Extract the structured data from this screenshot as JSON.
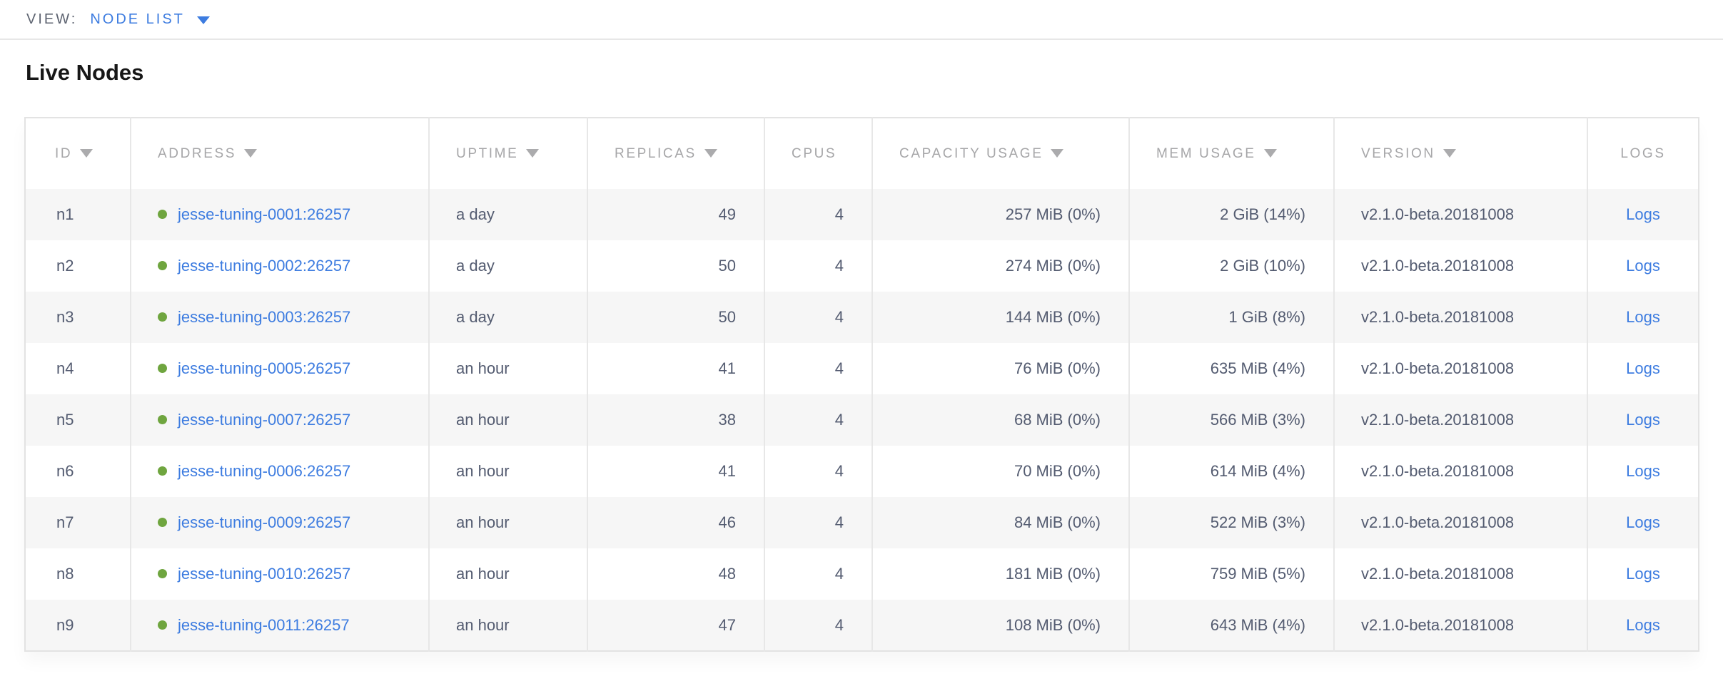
{
  "view_bar": {
    "label": "VIEW:",
    "selected_view": "NODE LIST"
  },
  "page": {
    "title": "Live Nodes"
  },
  "colors": {
    "link_blue": "#3d7ce0",
    "live_status_green": "#6fa53f",
    "header_grey": "#a6a6a8",
    "body_text_slate": "#535b70",
    "row_stripe": "#f6f6f6",
    "border": "#e7e7e7"
  },
  "table": {
    "columns": [
      {
        "label": "ID",
        "sortable": true
      },
      {
        "label": "ADDRESS",
        "sortable": true
      },
      {
        "label": "UPTIME",
        "sortable": true
      },
      {
        "label": "REPLICAS",
        "sortable": true
      },
      {
        "label": "CPUS",
        "sortable": false
      },
      {
        "label": "CAPACITY USAGE",
        "sortable": true
      },
      {
        "label": "MEM USAGE",
        "sortable": true
      },
      {
        "label": "VERSION",
        "sortable": true
      },
      {
        "label": "LOGS",
        "sortable": false
      }
    ],
    "rows": [
      {
        "id": "n1",
        "status": "live",
        "address": "jesse-tuning-0001:26257",
        "uptime": "a day",
        "replicas": "49",
        "cpus": "4",
        "capacity_usage": "257 MiB (0%)",
        "mem_usage": "2 GiB (14%)",
        "version": "v2.1.0-beta.20181008",
        "logs": "Logs"
      },
      {
        "id": "n2",
        "status": "live",
        "address": "jesse-tuning-0002:26257",
        "uptime": "a day",
        "replicas": "50",
        "cpus": "4",
        "capacity_usage": "274 MiB (0%)",
        "mem_usage": "2 GiB (10%)",
        "version": "v2.1.0-beta.20181008",
        "logs": "Logs"
      },
      {
        "id": "n3",
        "status": "live",
        "address": "jesse-tuning-0003:26257",
        "uptime": "a day",
        "replicas": "50",
        "cpus": "4",
        "capacity_usage": "144 MiB (0%)",
        "mem_usage": "1 GiB (8%)",
        "version": "v2.1.0-beta.20181008",
        "logs": "Logs"
      },
      {
        "id": "n4",
        "status": "live",
        "address": "jesse-tuning-0005:26257",
        "uptime": "an hour",
        "replicas": "41",
        "cpus": "4",
        "capacity_usage": "76 MiB (0%)",
        "mem_usage": "635 MiB (4%)",
        "version": "v2.1.0-beta.20181008",
        "logs": "Logs"
      },
      {
        "id": "n5",
        "status": "live",
        "address": "jesse-tuning-0007:26257",
        "uptime": "an hour",
        "replicas": "38",
        "cpus": "4",
        "capacity_usage": "68 MiB (0%)",
        "mem_usage": "566 MiB (3%)",
        "version": "v2.1.0-beta.20181008",
        "logs": "Logs"
      },
      {
        "id": "n6",
        "status": "live",
        "address": "jesse-tuning-0006:26257",
        "uptime": "an hour",
        "replicas": "41",
        "cpus": "4",
        "capacity_usage": "70 MiB (0%)",
        "mem_usage": "614 MiB (4%)",
        "version": "v2.1.0-beta.20181008",
        "logs": "Logs"
      },
      {
        "id": "n7",
        "status": "live",
        "address": "jesse-tuning-0009:26257",
        "uptime": "an hour",
        "replicas": "46",
        "cpus": "4",
        "capacity_usage": "84 MiB (0%)",
        "mem_usage": "522 MiB (3%)",
        "version": "v2.1.0-beta.20181008",
        "logs": "Logs"
      },
      {
        "id": "n8",
        "status": "live",
        "address": "jesse-tuning-0010:26257",
        "uptime": "an hour",
        "replicas": "48",
        "cpus": "4",
        "capacity_usage": "181 MiB (0%)",
        "mem_usage": "759 MiB (5%)",
        "version": "v2.1.0-beta.20181008",
        "logs": "Logs"
      },
      {
        "id": "n9",
        "status": "live",
        "address": "jesse-tuning-0011:26257",
        "uptime": "an hour",
        "replicas": "47",
        "cpus": "4",
        "capacity_usage": "108 MiB (0%)",
        "mem_usage": "643 MiB (4%)",
        "version": "v2.1.0-beta.20181008",
        "logs": "Logs"
      }
    ]
  }
}
